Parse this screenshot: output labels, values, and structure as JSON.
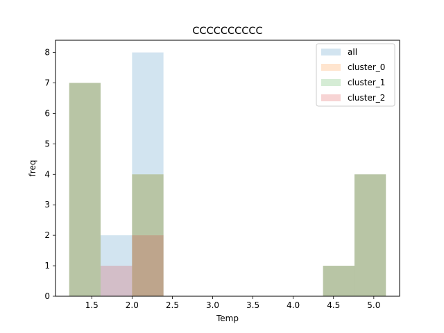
{
  "chart_data": {
    "type": "bar",
    "subtype": "overlapping-histogram",
    "title": "CCCCCCCCCC",
    "xlabel": "Temp",
    "ylabel": "freq",
    "xlim": [
      1.05,
      5.32
    ],
    "ylim": [
      0,
      8.4
    ],
    "xticks": [
      1.5,
      2.0,
      2.5,
      3.0,
      3.5,
      4.0,
      4.5,
      5.0
    ],
    "xtick_labels": [
      "1.5",
      "2.0",
      "2.5",
      "3.0",
      "3.5",
      "4.0",
      "4.5",
      "5.0"
    ],
    "yticks": [
      0,
      1,
      2,
      3,
      4,
      5,
      6,
      7,
      8
    ],
    "ytick_labels": [
      "0",
      "1",
      "2",
      "3",
      "4",
      "5",
      "6",
      "7",
      "8"
    ],
    "bin_edges": [
      1.22,
      1.61,
      2.0,
      2.39,
      2.78,
      3.17,
      3.56,
      3.95,
      4.37,
      4.76,
      5.15
    ],
    "series": [
      {
        "name": "all",
        "color": "#1f77b4",
        "alpha": 0.2,
        "values": [
          7,
          2,
          8,
          0,
          0,
          0,
          0,
          0,
          1,
          4
        ]
      },
      {
        "name": "cluster_0",
        "color": "#ff7f0e",
        "alpha": 0.2,
        "values": [
          7,
          0,
          4,
          0,
          0,
          0,
          0,
          0,
          1,
          4
        ]
      },
      {
        "name": "cluster_1",
        "color": "#2ca02c",
        "alpha": 0.2,
        "values": [
          7,
          0,
          4,
          0,
          0,
          0,
          0,
          0,
          1,
          4
        ]
      },
      {
        "name": "cluster_2",
        "color": "#d62728",
        "alpha": 0.2,
        "values": [
          0,
          1,
          2,
          0,
          0,
          0,
          0,
          0,
          0,
          0
        ]
      }
    ],
    "legend_position": "top-right",
    "grid": false
  }
}
